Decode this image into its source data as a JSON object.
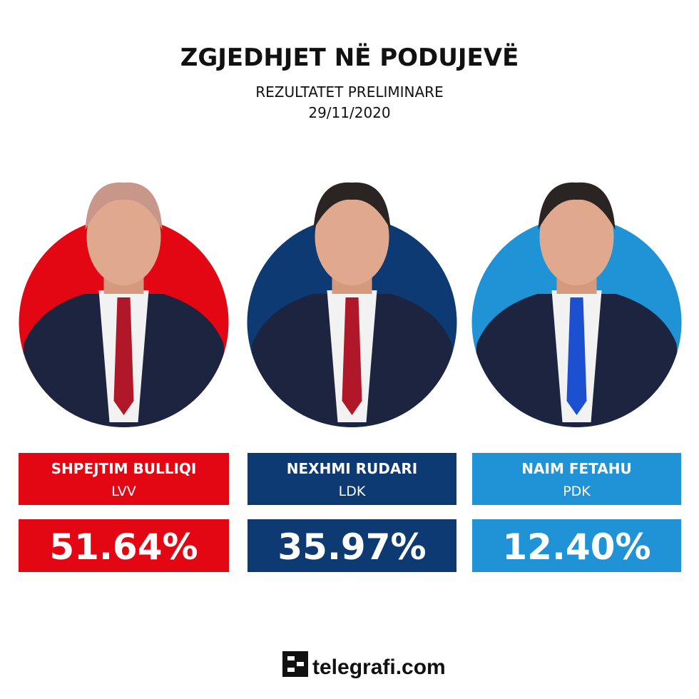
{
  "header": {
    "title": "ZGJEDHJET NË PODUJEVË",
    "subtitle": "REZULTATET PRELIMINARE",
    "date": "29/11/2020"
  },
  "candidates": [
    {
      "name": "SHPEJTIM BULLIQI",
      "party": "LVV",
      "result": "51.64%",
      "color": "#e30613"
    },
    {
      "name": "NEXHMI RUDARI",
      "party": "LDK",
      "result": "35.97%",
      "color": "#0d3a73"
    },
    {
      "name": "NAIM FETAHU",
      "party": "PDK",
      "result": "12.40%",
      "color": "#1f93d6"
    }
  ],
  "footer": {
    "brand": "telegrafi.com"
  }
}
